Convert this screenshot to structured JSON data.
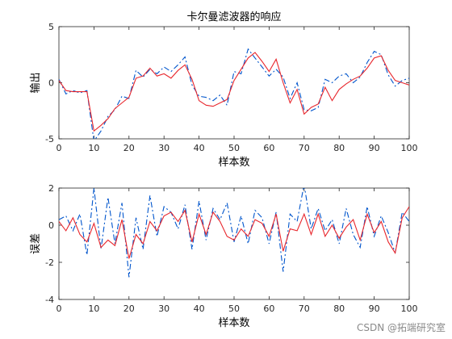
{
  "watermark": "CSDN @拓端研究室",
  "chart_data": [
    {
      "type": "line",
      "title": "卡尔曼滤波器的响应",
      "xlabel": "样本数",
      "ylabel": "输出",
      "xlim": [
        0,
        100
      ],
      "ylim": [
        -5,
        5
      ],
      "xticks": [
        0,
        10,
        20,
        30,
        40,
        50,
        60,
        70,
        80,
        90,
        100
      ],
      "yticks": [
        -5,
        0,
        5
      ],
      "series": [
        {
          "color": "#0055cc",
          "style": "dashdot",
          "x": [
            0,
            2,
            4,
            6,
            8,
            10,
            12,
            14,
            16,
            18,
            20,
            22,
            24,
            26,
            28,
            30,
            32,
            34,
            36,
            38,
            40,
            42,
            44,
            46,
            48,
            50,
            52,
            54,
            56,
            58,
            60,
            62,
            64,
            66,
            68,
            70,
            72,
            74,
            76,
            78,
            80,
            82,
            84,
            86,
            88,
            90,
            92,
            94,
            96,
            98,
            100
          ],
          "y": [
            0.3,
            -1.0,
            -0.7,
            -0.9,
            -0.7,
            -5.2,
            -4.3,
            -3.0,
            -2.4,
            -1.2,
            -1.4,
            1.1,
            0.5,
            1.2,
            0.8,
            1.4,
            1.0,
            1.6,
            2.3,
            -0.2,
            -1.2,
            -1.3,
            -1.6,
            -1.1,
            -2.0,
            1.0,
            0.8,
            3.0,
            2.2,
            1.4,
            0.6,
            1.2,
            0.5,
            -1.4,
            0.0,
            -2.4,
            -2.5,
            -2.2,
            0.3,
            0.0,
            0.6,
            0.8,
            0.0,
            0.5,
            1.8,
            2.8,
            2.5,
            0.7,
            -0.3,
            0.2,
            0.4
          ]
        },
        {
          "color": "#e8262c",
          "style": "solid",
          "x": [
            0,
            2,
            4,
            6,
            8,
            10,
            12,
            14,
            16,
            18,
            20,
            22,
            24,
            26,
            28,
            30,
            32,
            34,
            36,
            38,
            40,
            42,
            44,
            46,
            48,
            50,
            52,
            54,
            56,
            58,
            60,
            62,
            64,
            66,
            68,
            70,
            72,
            74,
            76,
            78,
            80,
            82,
            84,
            86,
            88,
            90,
            92,
            94,
            96,
            98,
            100
          ],
          "y": [
            0.2,
            -0.7,
            -0.8,
            -0.8,
            -0.8,
            -4.3,
            -3.8,
            -3.2,
            -2.3,
            -1.8,
            -1.3,
            0.4,
            0.6,
            1.3,
            0.6,
            0.8,
            0.4,
            1.1,
            1.6,
            0.3,
            -1.6,
            -2.0,
            -2.1,
            -1.8,
            -1.5,
            0.2,
            1.2,
            2.2,
            2.7,
            1.9,
            1.0,
            2.1,
            0.0,
            -1.8,
            -0.6,
            -2.8,
            -2.2,
            -1.9,
            -0.4,
            -1.6,
            -0.6,
            -0.1,
            0.3,
            0.6,
            1.3,
            2.2,
            2.4,
            1.1,
            0.2,
            0.0,
            -0.2
          ]
        }
      ]
    },
    {
      "type": "line",
      "xlabel": "样本数",
      "ylabel": "误差",
      "xlim": [
        0,
        100
      ],
      "ylim": [
        -4,
        2
      ],
      "xticks": [
        0,
        10,
        20,
        30,
        40,
        50,
        60,
        70,
        80,
        90,
        100
      ],
      "yticks": [
        -4,
        -2,
        0,
        2
      ],
      "series": [
        {
          "color": "#0055cc",
          "style": "dashdot",
          "x": [
            0,
            2,
            4,
            6,
            8,
            10,
            12,
            14,
            16,
            18,
            20,
            22,
            24,
            26,
            28,
            30,
            32,
            34,
            36,
            38,
            40,
            42,
            44,
            46,
            48,
            50,
            52,
            54,
            56,
            58,
            60,
            62,
            64,
            66,
            68,
            70,
            72,
            74,
            76,
            78,
            80,
            82,
            84,
            86,
            88,
            90,
            92,
            94,
            96,
            98,
            100
          ],
          "y": [
            0.3,
            0.5,
            -0.3,
            0.6,
            -1.6,
            2.0,
            -1.3,
            1.5,
            -1.0,
            1.2,
            -2.8,
            0.4,
            -1.3,
            1.6,
            -0.6,
            1.0,
            0.7,
            -0.2,
            1.1,
            -1.3,
            1.3,
            -0.8,
            0.9,
            0.3,
            1.2,
            -0.9,
            0.5,
            -1.0,
            0.8,
            0.4,
            -1.0,
            0.7,
            -2.5,
            0.6,
            0.2,
            2.2,
            -0.2,
            0.9,
            -0.3,
            0.3,
            -1.0,
            0.9,
            -0.5,
            -1.2,
            1.0,
            -0.6,
            0.5,
            -0.4,
            -1.5,
            0.7,
            0.2
          ]
        },
        {
          "color": "#e8262c",
          "style": "solid",
          "x": [
            0,
            2,
            4,
            6,
            8,
            10,
            12,
            14,
            16,
            18,
            20,
            22,
            24,
            26,
            28,
            30,
            32,
            34,
            36,
            38,
            40,
            42,
            44,
            46,
            48,
            50,
            52,
            54,
            56,
            58,
            60,
            62,
            64,
            66,
            68,
            70,
            72,
            74,
            76,
            78,
            80,
            82,
            84,
            86,
            88,
            90,
            92,
            94,
            96,
            98,
            100
          ],
          "y": [
            0.2,
            -0.3,
            0.4,
            -0.5,
            -0.9,
            0.1,
            -1.2,
            -0.8,
            -1.1,
            0.3,
            -1.8,
            -0.5,
            -1.0,
            0.2,
            -0.3,
            0.5,
            0.7,
            0.2,
            0.8,
            -0.9,
            0.6,
            -0.5,
            0.7,
            0.2,
            -0.6,
            -0.8,
            -0.2,
            -0.6,
            0.3,
            0.1,
            -0.6,
            0.6,
            -1.4,
            -0.2,
            -0.3,
            0.6,
            -0.5,
            0.6,
            -0.6,
            0.0,
            -0.7,
            -0.1,
            0.3,
            -0.8,
            0.6,
            -0.4,
            0.2,
            -0.9,
            -1.5,
            0.4,
            1.0
          ]
        }
      ]
    }
  ]
}
